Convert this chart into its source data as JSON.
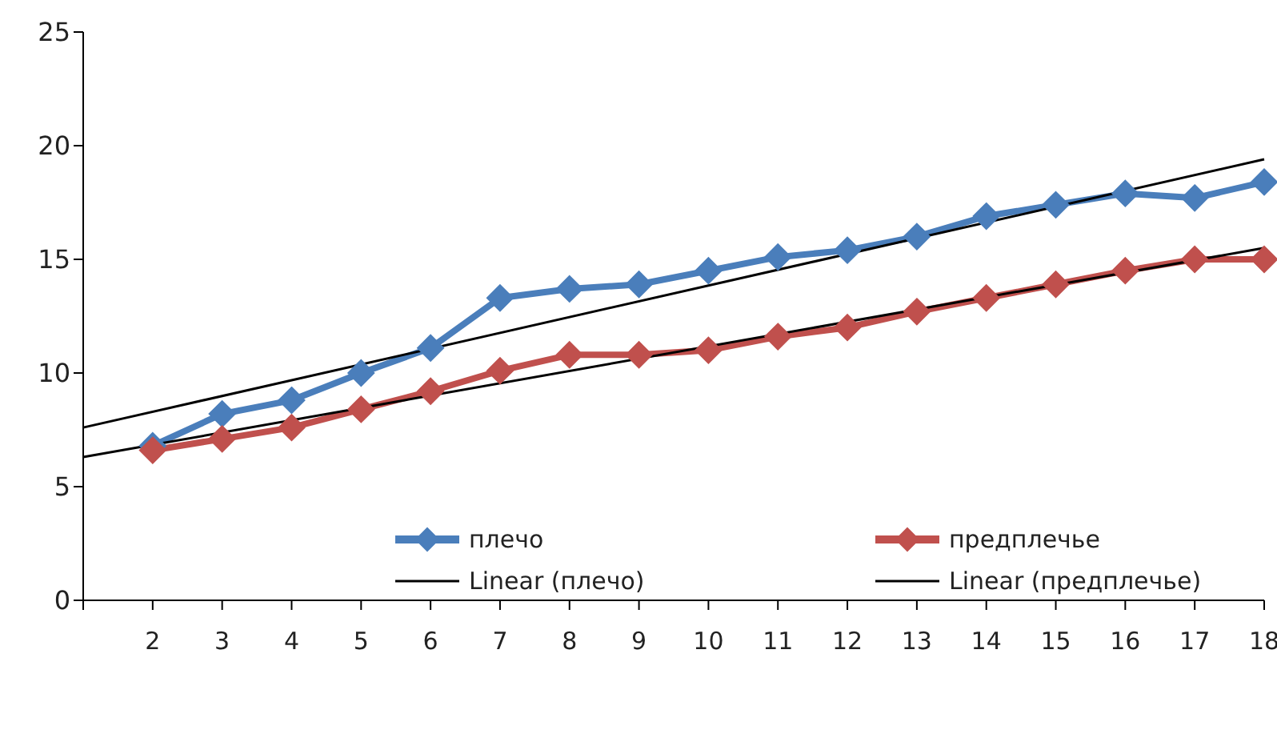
{
  "chart_data": {
    "type": "line",
    "categories": [
      null,
      "2",
      "3",
      "4",
      "5",
      "6",
      "7",
      "8",
      "9",
      "10",
      "11",
      "12",
      "13",
      "14",
      "15",
      "16",
      "17",
      "18"
    ],
    "series": [
      {
        "name": "плечо",
        "color": "#4a7ebb",
        "values": [
          null,
          6.8,
          8.2,
          8.8,
          10.0,
          11.1,
          13.3,
          13.7,
          13.9,
          14.5,
          15.1,
          15.4,
          16.0,
          16.9,
          17.4,
          17.9,
          17.7,
          18.4
        ]
      },
      {
        "name": "предплечье",
        "color": "#c0504d",
        "values": [
          null,
          6.6,
          7.1,
          7.6,
          8.4,
          9.2,
          10.1,
          10.8,
          10.8,
          11.0,
          11.6,
          12.0,
          12.7,
          13.3,
          13.9,
          14.5,
          15.0,
          15.0
        ]
      },
      {
        "name": "Linear (плечо)",
        "color": "#000000",
        "marker": "none",
        "values": [
          7.6,
          null,
          null,
          null,
          null,
          null,
          null,
          null,
          null,
          null,
          null,
          null,
          null,
          null,
          null,
          null,
          null,
          19.4
        ]
      },
      {
        "name": "Linear (предплечье)",
        "color": "#000000",
        "marker": "none",
        "values": [
          6.3,
          null,
          null,
          null,
          null,
          null,
          null,
          null,
          null,
          null,
          null,
          null,
          null,
          null,
          null,
          null,
          null,
          15.5
        ]
      }
    ],
    "ylim": [
      0,
      25
    ],
    "yticks": [
      0,
      5,
      10,
      15,
      20,
      25
    ],
    "grid": false,
    "legend": "bottom",
    "marker": "diamond",
    "line_style": "solid"
  }
}
